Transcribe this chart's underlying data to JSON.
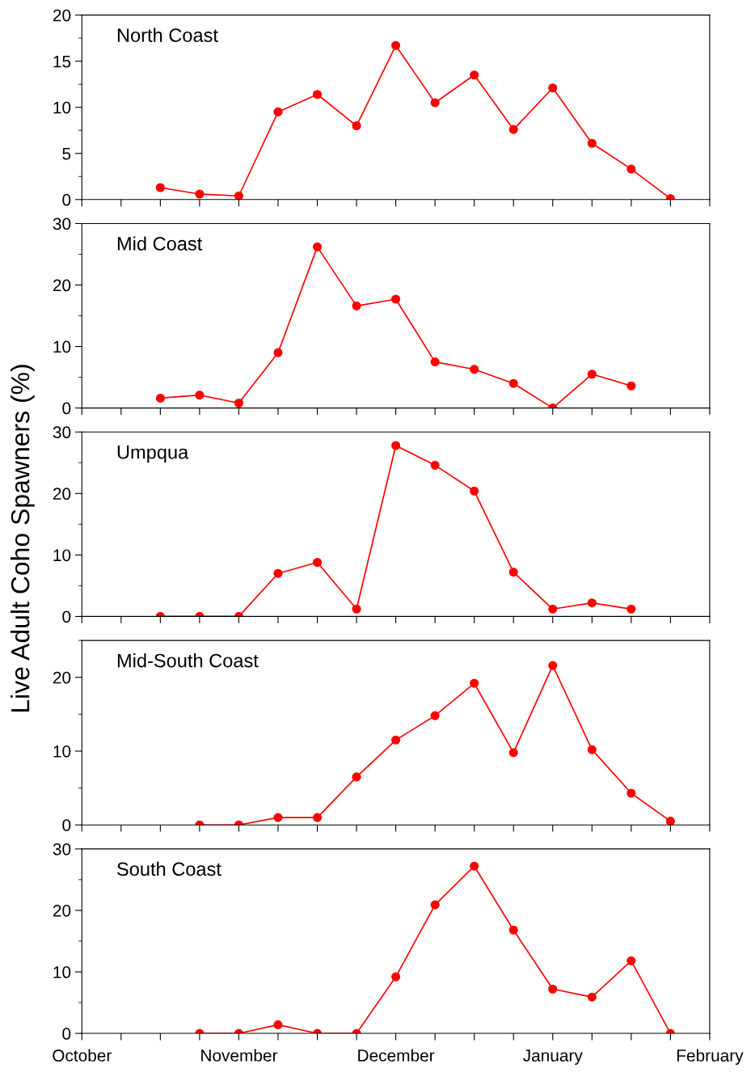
{
  "chart_data": [
    {
      "type": "line",
      "title": "North Coast",
      "categories": [
        null,
        null,
        null,
        null,
        null,
        null,
        null,
        null,
        null,
        null,
        null,
        null,
        null,
        null,
        null,
        null,
        null
      ],
      "series": [
        {
          "color": "#ff0000",
          "values": [
            null,
            null,
            1.3,
            0.6,
            0.4,
            9.5,
            11.4,
            8.0,
            16.7,
            10.5,
            13.5,
            7.6,
            12.1,
            6.1,
            3.3,
            0.1,
            null
          ]
        }
      ],
      "ylim": [
        0,
        20
      ],
      "yticks": [
        0,
        5,
        10,
        15,
        20
      ],
      "marker": "circle",
      "line_style": "solid",
      "tick_labels": "y"
    },
    {
      "type": "line",
      "title": "Mid Coast",
      "categories": [
        null,
        null,
        null,
        null,
        null,
        null,
        null,
        null,
        null,
        null,
        null,
        null,
        null,
        null,
        null,
        null,
        null
      ],
      "series": [
        {
          "color": "#ff0000",
          "values": [
            null,
            null,
            1.6,
            2.1,
            0.8,
            9.0,
            26.2,
            16.6,
            17.7,
            7.5,
            6.3,
            4.0,
            0,
            5.5,
            3.6,
            null,
            null
          ]
        }
      ],
      "ylim": [
        0,
        30
      ],
      "yticks": [
        0,
        10,
        20,
        30
      ],
      "marker": "circle",
      "line_style": "solid",
      "tick_labels": "y"
    },
    {
      "type": "line",
      "title": "Umpqua",
      "categories": [
        null,
        null,
        null,
        null,
        null,
        null,
        null,
        null,
        null,
        null,
        null,
        null,
        null,
        null,
        null,
        null,
        null
      ],
      "series": [
        {
          "color": "#ff0000",
          "values": [
            null,
            null,
            0,
            0,
            0,
            7.0,
            8.8,
            1.2,
            27.8,
            24.6,
            20.4,
            7.2,
            1.2,
            2.2,
            1.2,
            null,
            null
          ]
        }
      ],
      "ylim": [
        0,
        30
      ],
      "yticks": [
        0,
        10,
        20,
        30
      ],
      "marker": "circle",
      "line_style": "solid",
      "tick_labels": "y"
    },
    {
      "type": "line",
      "title": "Mid-South Coast",
      "categories": [
        null,
        null,
        null,
        null,
        null,
        null,
        null,
        null,
        null,
        null,
        null,
        null,
        null,
        null,
        null,
        null,
        null
      ],
      "series": [
        {
          "color": "#ff0000",
          "values": [
            null,
            null,
            null,
            0,
            0,
            1.0,
            1.0,
            6.5,
            11.5,
            14.8,
            19.2,
            9.8,
            21.6,
            10.2,
            4.3,
            0.5,
            null
          ]
        }
      ],
      "ylim": [
        0,
        25
      ],
      "yticks": [
        0,
        10,
        20
      ],
      "marker": "circle",
      "line_style": "solid",
      "tick_labels": "y"
    },
    {
      "type": "line",
      "title": "South Coast",
      "ylabel": "Live Adult Coho Spawners (%)",
      "categories": [
        "October",
        null,
        null,
        null,
        "November",
        null,
        null,
        null,
        "December",
        null,
        null,
        null,
        "January",
        null,
        null,
        null,
        "February"
      ],
      "series": [
        {
          "color": "#ff0000",
          "values": [
            null,
            null,
            null,
            0,
            0,
            1.4,
            0,
            0,
            9.2,
            20.9,
            27.2,
            16.8,
            7.2,
            5.9,
            11.8,
            0,
            null
          ]
        }
      ],
      "ylim": [
        0,
        30
      ],
      "yticks": [
        0,
        10,
        20,
        30
      ],
      "marker": "circle",
      "line_style": "solid"
    }
  ]
}
